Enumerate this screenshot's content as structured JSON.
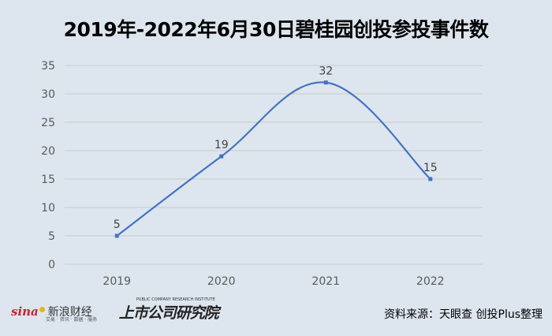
{
  "chart_data": {
    "type": "line",
    "title": "2019年-2022年6月30日碧桂园创投参投事件数",
    "categories": [
      "2019",
      "2020",
      "2021",
      "2022"
    ],
    "series": [
      {
        "values": [
          5,
          19,
          32,
          15
        ],
        "color": "#4472c4"
      }
    ],
    "data_labels": [
      "5",
      "19",
      "32",
      "15"
    ],
    "y_ticks": [
      "0",
      "5",
      "10",
      "15",
      "20",
      "25",
      "30",
      "35"
    ],
    "ylim": [
      0,
      35
    ],
    "grid": true,
    "smooth": true
  },
  "footer": {
    "source": "资料来源：天眼查 创投Plus整理",
    "sina_logo_text": "sina",
    "sina_logo_cn": "新浪财经",
    "sina_logo_sub": "交易 · 资讯 · 数据 · 服务",
    "institute_logo_cn": "上市公司研究院",
    "institute_logo_en": "PUBLIC COMPANY RESEARCH INSTITUTE"
  },
  "colors": {
    "background": "#dde6ee",
    "line": "#4472c4",
    "grid": "#c9c9c9"
  }
}
